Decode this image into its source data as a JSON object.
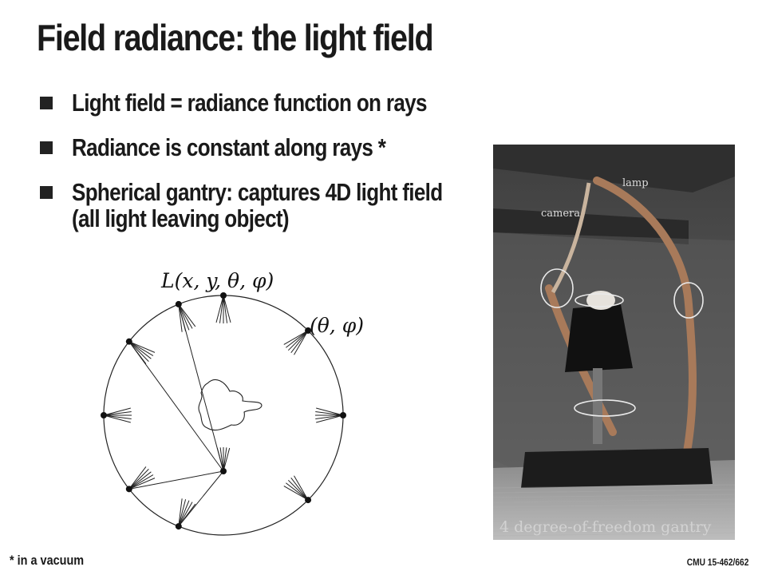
{
  "slide": {
    "title": "Field radiance: the light field",
    "bullets": [
      {
        "line1": "Light field = radiance function on rays",
        "line2": ""
      },
      {
        "line1": "Radiance is constant along rays *",
        "line2": ""
      },
      {
        "line1": "Spherical gantry: captures 4D light field",
        "line2": "(all light leaving object)"
      }
    ],
    "footnote": "* in a vacuum",
    "course": "CMU 15-462/662"
  },
  "diagram": {
    "function_label": "L(x, y, θ, φ)",
    "angle_label": "(θ, φ)"
  },
  "photo": {
    "label_lamp": "lamp",
    "label_camera": "camera",
    "caption": "4 degree-of-freedom gantry"
  }
}
